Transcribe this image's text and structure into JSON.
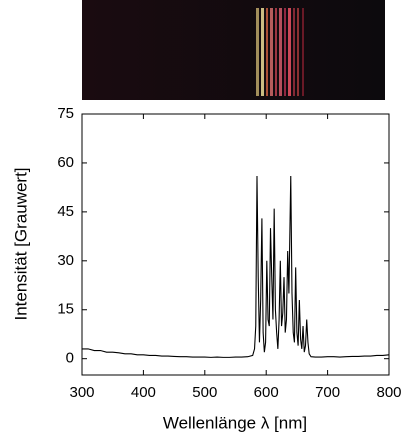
{
  "chart_data": {
    "type": "line",
    "x_label": "Wellenlänge λ [nm]",
    "y_label": "Intensität [Grauwert]",
    "color": "#000000",
    "x": [
      300,
      310,
      320,
      330,
      340,
      350,
      360,
      370,
      380,
      390,
      400,
      410,
      420,
      430,
      440,
      450,
      460,
      470,
      480,
      490,
      500,
      510,
      520,
      530,
      540,
      550,
      560,
      570,
      578,
      581,
      583,
      585,
      587,
      589,
      591,
      593,
      595,
      597,
      599,
      601,
      603,
      605,
      607,
      609,
      611,
      613,
      615,
      617,
      619,
      621,
      623,
      625,
      627,
      629,
      631,
      633,
      635,
      637,
      640,
      642,
      644,
      646,
      648,
      650,
      652,
      654,
      656,
      658,
      660,
      662,
      664,
      666,
      668,
      670,
      673,
      680,
      690,
      700,
      710,
      720,
      730,
      740,
      750,
      760,
      770,
      780,
      790,
      800
    ],
    "values": [
      3,
      3,
      2.5,
      2.5,
      2,
      2,
      1.8,
      1.5,
      1.5,
      1.2,
      1.2,
      1,
      1,
      0.8,
      0.8,
      0.7,
      0.6,
      0.6,
      0.5,
      0.5,
      0.5,
      0.4,
      0.5,
      0.4,
      0.4,
      0.5,
      0.5,
      0.6,
      1,
      3,
      10,
      56,
      25,
      5,
      18,
      43,
      8,
      2,
      5,
      30,
      12,
      10,
      40,
      25,
      12,
      46,
      15,
      8,
      3,
      12,
      30,
      10,
      14,
      25,
      8,
      12,
      33,
      20,
      56,
      20,
      8,
      5,
      28,
      8,
      4,
      18,
      6,
      3,
      10,
      2,
      4,
      12,
      5,
      1.5,
      0.6,
      0.5,
      0.5,
      0.6,
      0.6,
      0.5,
      0.6,
      0.7,
      0.7,
      0.8,
      0.8,
      1,
      1,
      1.2
    ],
    "xlim": [
      300,
      800
    ],
    "xticks": [
      300,
      400,
      500,
      600,
      700,
      800
    ],
    "ylim": [
      -5,
      75
    ],
    "yticks": [
      0,
      15,
      30,
      45,
      60,
      75
    ]
  }
}
